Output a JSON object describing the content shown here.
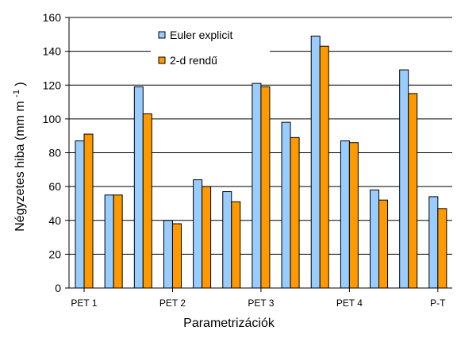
{
  "chart_data": {
    "type": "bar",
    "categories": [
      "1",
      "2",
      "3",
      "4",
      "5",
      "6",
      "7",
      "8",
      "9",
      "10",
      "11",
      "12",
      "13"
    ],
    "category_tick_labels": [
      {
        "after_group": 1,
        "text": "PET 1"
      },
      {
        "after_group": 4,
        "text": "PET 2"
      },
      {
        "after_group": 7,
        "text": "PET 3"
      },
      {
        "after_group": 10,
        "text": "PET 4"
      },
      {
        "after_group": 13,
        "text": "P-T"
      }
    ],
    "series": [
      {
        "name": "Euler explicit",
        "color": "#99ccff",
        "values": [
          87,
          55,
          119,
          40,
          64,
          57,
          121,
          98,
          149,
          87,
          58,
          129,
          54
        ]
      },
      {
        "name": "2-d rendű",
        "color": "#ff9900",
        "values": [
          91,
          55,
          103,
          38,
          60,
          51,
          119,
          89,
          143,
          86,
          52,
          115,
          47
        ]
      }
    ],
    "xlabel": "Parametrizációk",
    "ylabel_prefix": "Négyzetes hiba (mm m",
    "ylabel_superscript": "-1",
    "ylabel_suffix": ")",
    "ylim": [
      0,
      160
    ],
    "yticks": [
      "0",
      "20",
      "40",
      "60",
      "80",
      "100",
      "120",
      "140",
      "160"
    ],
    "grid": true,
    "legend_position": "top-center"
  }
}
